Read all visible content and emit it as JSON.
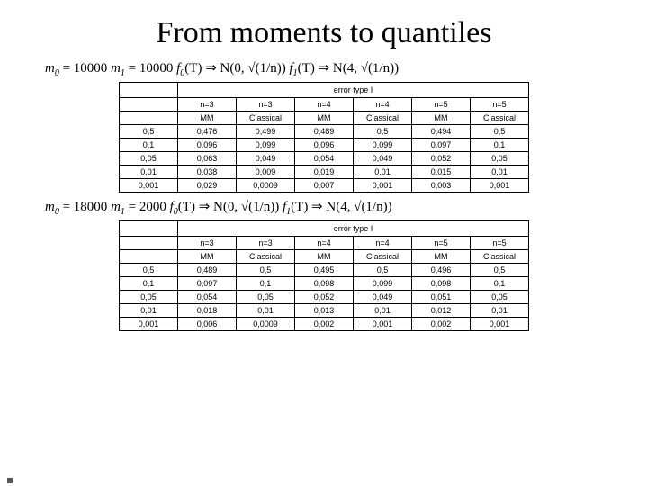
{
  "title": "From moments to quantiles",
  "eq1": {
    "m0": "m",
    "m0sub": "0",
    "m0val": " = 10000 ",
    "m1": "m",
    "m1sub": "1",
    "m1val": " = 10000  ",
    "f0": "f",
    "f0sub": "0",
    "f0arg": "(T) ⇒ N(0, √(1/n))  ",
    "f1": "f",
    "f1sub": "1",
    "f1arg": "(T) ⇒ N(4, √(1/n))"
  },
  "eq2": {
    "m0": "m",
    "m0sub": "0",
    "m0val": " = 18000 ",
    "m1": "m",
    "m1sub": "1",
    "m1val": " = 2000  ",
    "f0": "f",
    "f0sub": "0",
    "f0arg": "(T) ⇒ N(0, √(1/n))  ",
    "f1": "f",
    "f1sub": "1",
    "f1arg": "(T) ⇒ N(4, √(1/n))"
  },
  "table1": {
    "caption": "error type I",
    "nheaders": [
      "n=3",
      "n=3",
      "n=4",
      "n=4",
      "n=5",
      "n=5"
    ],
    "mheaders": [
      "MM",
      "Classical",
      "MM",
      "Classical",
      "MM",
      "Classical"
    ],
    "rows": [
      {
        "head": "0,5",
        "cells": [
          "0,476",
          "0,499",
          "0,489",
          "0,5",
          "0,494",
          "0,5"
        ]
      },
      {
        "head": "0,1",
        "cells": [
          "0,096",
          "0,099",
          "0,096",
          "0,099",
          "0,097",
          "0,1"
        ]
      },
      {
        "head": "0,05",
        "cells": [
          "0,063",
          "0,049",
          "0,054",
          "0,049",
          "0,052",
          "0,05"
        ]
      },
      {
        "head": "0,01",
        "cells": [
          "0,038",
          "0,009",
          "0,019",
          "0,01",
          "0,015",
          "0,01"
        ]
      },
      {
        "head": "0,001",
        "cells": [
          "0,029",
          "0,0009",
          "0,007",
          "0,001",
          "0,003",
          "0,001"
        ]
      }
    ]
  },
  "table2": {
    "caption": "error type I",
    "nheaders": [
      "n=3",
      "n=3",
      "n=4",
      "n=4",
      "n=5",
      "n=5"
    ],
    "mheaders": [
      "MM",
      "Classical",
      "MM",
      "Classical",
      "MM",
      "Classical"
    ],
    "rows": [
      {
        "head": "0,5",
        "cells": [
          "0,489",
          "0,5",
          "0,495",
          "0,5",
          "0,496",
          "0,5"
        ]
      },
      {
        "head": "0,1",
        "cells": [
          "0,097",
          "0,1",
          "0,098",
          "0,099",
          "0,098",
          "0,1"
        ]
      },
      {
        "head": "0,05",
        "cells": [
          "0,054",
          "0,05",
          "0,052",
          "0,049",
          "0,051",
          "0,05"
        ]
      },
      {
        "head": "0,01",
        "cells": [
          "0,018",
          "0,01",
          "0,013",
          "0,01",
          "0,012",
          "0,01"
        ]
      },
      {
        "head": "0,001",
        "cells": [
          "0,006",
          "0,0009",
          "0,002",
          "0,001",
          "0,002",
          "0,001"
        ]
      }
    ]
  }
}
